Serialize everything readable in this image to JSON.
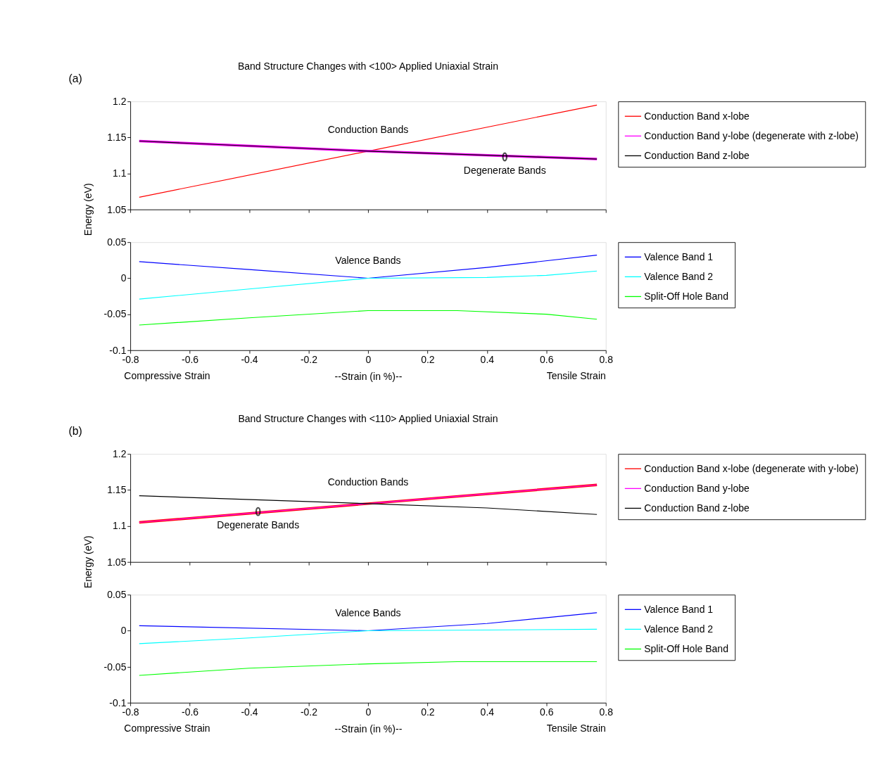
{
  "chart_data": [
    {
      "type": "line",
      "title": "Band Structure Changes with <100> Applied Uniaxial Strain",
      "ylabel": "Energy (eV)",
      "xlim": [
        -0.8,
        0.8
      ],
      "ylim": [
        1.05,
        1.2
      ],
      "xticks": [
        -0.8,
        -0.6,
        -0.4,
        -0.2,
        0,
        0.2,
        0.4,
        0.6,
        0.8
      ],
      "yticks": [
        1.05,
        1.1,
        1.15,
        1.2
      ],
      "tick_labels": "y",
      "grid": false,
      "legend": "right",
      "x": [
        -0.77,
        0,
        0.77
      ],
      "series": [
        {
          "name": "Conduction Band x-lobe",
          "color": "#ff0000",
          "values": [
            1.067,
            1.131,
            1.195
          ]
        },
        {
          "name": "Conduction Band y-lobe (degenerate with z-lobe)",
          "color": "#ff00ff",
          "values": [
            1.145,
            1.131,
            1.12
          ]
        },
        {
          "name": "Conduction Band z-lobe",
          "color": "#000000",
          "values": [
            1.145,
            1.131,
            1.12
          ]
        }
      ],
      "annotations": [
        "(a)",
        "Conduction Bands",
        {
          "text": "Degenerate Bands",
          "x": 0.46,
          "y": 1.123
        }
      ]
    },
    {
      "type": "line",
      "xlabel": "--Strain (in %)--",
      "xlim": [
        -0.8,
        0.8
      ],
      "ylim": [
        -0.1,
        0.05
      ],
      "xticks": [
        -0.8,
        -0.6,
        -0.4,
        -0.2,
        0,
        0.2,
        0.4,
        0.6,
        0.8
      ],
      "yticks": [
        -0.1,
        -0.05,
        0,
        0.05
      ],
      "grid": false,
      "legend": "right",
      "series": [
        {
          "name": "Valence Band 1",
          "color": "#0000ff",
          "x": [
            -0.77,
            -0.4,
            0,
            0.4,
            0.77
          ],
          "values": [
            0.023,
            0.012,
            0,
            0.015,
            0.032
          ]
        },
        {
          "name": "Valence Band 2",
          "color": "#00ffff",
          "x": [
            -0.77,
            -0.4,
            0,
            0.4,
            0.6,
            0.77
          ],
          "values": [
            -0.029,
            -0.015,
            0,
            0.001,
            0.004,
            0.01
          ]
        },
        {
          "name": "Split-Off Hole Band",
          "color": "#00ff00",
          "x": [
            -0.77,
            -0.4,
            0,
            0.3,
            0.6,
            0.77
          ],
          "values": [
            -0.065,
            -0.055,
            -0.045,
            -0.045,
            -0.05,
            -0.057
          ]
        }
      ],
      "annotations": [
        "Valence Bands",
        "Compressive Strain",
        "Tensile Strain"
      ]
    },
    {
      "type": "line",
      "title": "Band Structure Changes with <110> Applied Uniaxial Strain",
      "ylabel": "Energy (eV)",
      "xlim": [
        -0.8,
        0.8
      ],
      "ylim": [
        1.05,
        1.2
      ],
      "xticks": [
        -0.8,
        -0.6,
        -0.4,
        -0.2,
        0,
        0.2,
        0.4,
        0.6,
        0.8
      ],
      "yticks": [
        1.05,
        1.1,
        1.15,
        1.2
      ],
      "tick_labels": "y",
      "grid": false,
      "legend": "right",
      "series": [
        {
          "name": "Conduction Band x-lobe (degenerate with y-lobe)",
          "color": "#ff0000",
          "x": [
            -0.77,
            0,
            0.77
          ],
          "values": [
            1.105,
            1.131,
            1.157
          ]
        },
        {
          "name": "Conduction Band y-lobe",
          "color": "#ff00ff",
          "x": [
            -0.77,
            0,
            0.77
          ],
          "values": [
            1.105,
            1.131,
            1.157
          ]
        },
        {
          "name": "Conduction Band z-lobe",
          "color": "#000000",
          "x": [
            -0.77,
            0,
            0.4,
            0.77
          ],
          "values": [
            1.142,
            1.131,
            1.125,
            1.116
          ]
        }
      ],
      "annotations": [
        "(b)",
        "Conduction Bands",
        {
          "text": "Degenerate Bands",
          "x": -0.37,
          "y": 1.12
        }
      ]
    },
    {
      "type": "line",
      "xlabel": "--Strain (in %)--",
      "xlim": [
        -0.8,
        0.8
      ],
      "ylim": [
        -0.1,
        0.05
      ],
      "xticks": [
        -0.8,
        -0.6,
        -0.4,
        -0.2,
        0,
        0.2,
        0.4,
        0.6,
        0.8
      ],
      "yticks": [
        -0.1,
        -0.05,
        0,
        0.05
      ],
      "grid": false,
      "legend": "right",
      "series": [
        {
          "name": "Valence Band 1",
          "color": "#0000ff",
          "x": [
            -0.77,
            0,
            0.4,
            0.77
          ],
          "values": [
            0.007,
            0,
            0.01,
            0.025
          ]
        },
        {
          "name": "Valence Band 2",
          "color": "#00ffff",
          "x": [
            -0.77,
            -0.4,
            0,
            0.4,
            0.77
          ],
          "values": [
            -0.018,
            -0.01,
            0,
            0.001,
            0.002
          ]
        },
        {
          "name": "Split-Off Hole Band",
          "color": "#00ff00",
          "x": [
            -0.77,
            -0.4,
            0,
            0.3,
            0.77
          ],
          "values": [
            -0.062,
            -0.052,
            -0.046,
            -0.043,
            -0.043
          ]
        }
      ],
      "annotations": [
        "Valence Bands",
        "Compressive Strain",
        "Tensile Strain"
      ]
    }
  ]
}
